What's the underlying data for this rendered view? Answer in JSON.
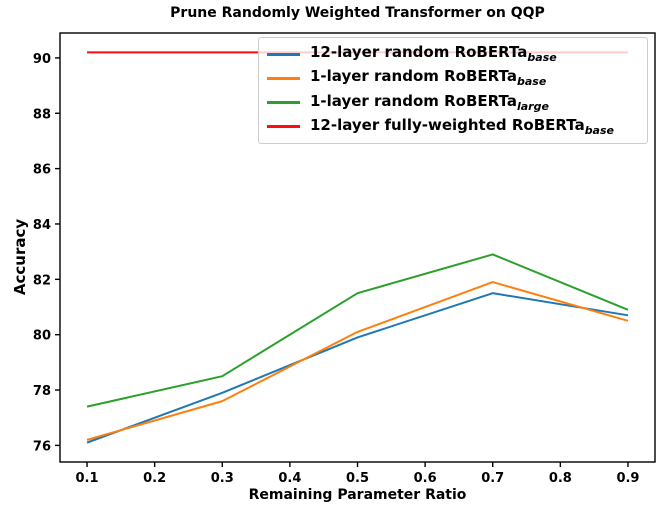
{
  "chart_data": {
    "type": "line",
    "title": "Prune Randomly Weighted Transformer on QQP",
    "xlabel": "Remaining Parameter Ratio",
    "ylabel": "Accuracy",
    "x": [
      0.1,
      0.3,
      0.5,
      0.7,
      0.9
    ],
    "series": [
      {
        "name": "12-layer random RoBERTa_base",
        "name_main": "12-layer random RoBERTa",
        "name_sub": "base",
        "color": "#1f77b4",
        "values": [
          76.1,
          77.9,
          79.9,
          81.5,
          80.7
        ]
      },
      {
        "name": "1-layer random RoBERTa_base",
        "name_main": "1-layer random RoBERTa",
        "name_sub": "base",
        "color": "#ff7f0e",
        "values": [
          76.2,
          77.6,
          80.1,
          81.9,
          80.5
        ]
      },
      {
        "name": "1-layer random RoBERTa_large",
        "name_main": "1-layer random RoBERTa",
        "name_sub": "large",
        "color": "#2ca02c",
        "values": [
          77.4,
          78.5,
          81.5,
          82.9,
          80.9
        ]
      },
      {
        "name": "12-layer fully-weighted RoBERTa_base",
        "name_main": "12-layer fully-weighted RoBERTa",
        "name_sub": "base",
        "color": "#fb0d10",
        "values": [
          90.2,
          90.2,
          90.2,
          90.2,
          90.2
        ]
      }
    ],
    "xticks": [
      "0.1",
      "0.2",
      "0.3",
      "0.4",
      "0.5",
      "0.6",
      "0.7",
      "0.8",
      "0.9"
    ],
    "yticks": [
      "76",
      "78",
      "80",
      "82",
      "84",
      "86",
      "88",
      "90"
    ],
    "xlim": [
      0.06,
      0.94
    ],
    "ylim": [
      75.4,
      90.9
    ],
    "grid": false,
    "legend_position": "upper right",
    "axis_color": "#000000",
    "background_color": "#ffffff"
  }
}
